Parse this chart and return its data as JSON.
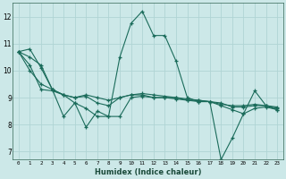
{
  "xlabel": "Humidex (Indice chaleur)",
  "bg_color": "#cce8e8",
  "grid_color": "#b0d4d4",
  "line_color": "#1a6b5a",
  "x_ticks": [
    0,
    1,
    2,
    3,
    4,
    5,
    6,
    7,
    8,
    9,
    10,
    11,
    12,
    13,
    14,
    15,
    16,
    17,
    18,
    19,
    20,
    21,
    22,
    23
  ],
  "y_ticks": [
    7,
    8,
    9,
    10,
    11,
    12
  ],
  "xlim": [
    -0.5,
    23.5
  ],
  "ylim": [
    6.7,
    12.5
  ],
  "series": [
    [
      10.7,
      10.8,
      10.1,
      9.3,
      8.3,
      8.8,
      7.9,
      8.5,
      8.3,
      10.5,
      11.75,
      12.2,
      11.3,
      11.3,
      10.35,
      9.0,
      8.85,
      8.85,
      6.7,
      7.5,
      8.4,
      9.25,
      8.7,
      8.55
    ],
    [
      10.7,
      10.0,
      9.5,
      9.3,
      9.1,
      9.0,
      9.1,
      9.0,
      8.9,
      9.0,
      9.1,
      9.15,
      9.1,
      9.05,
      9.0,
      8.95,
      8.9,
      8.85,
      8.75,
      8.7,
      8.7,
      8.75,
      8.7,
      8.65
    ],
    [
      10.7,
      10.5,
      10.2,
      9.3,
      9.1,
      9.0,
      9.05,
      8.8,
      8.7,
      9.0,
      9.1,
      9.1,
      9.0,
      9.0,
      9.0,
      8.9,
      8.9,
      8.85,
      8.8,
      8.65,
      8.65,
      8.7,
      8.7,
      8.6
    ],
    [
      10.7,
      10.2,
      9.3,
      9.25,
      9.1,
      8.8,
      8.6,
      8.3,
      8.3,
      8.3,
      9.0,
      9.05,
      9.0,
      9.0,
      8.95,
      8.9,
      8.85,
      8.85,
      8.7,
      8.55,
      8.4,
      8.6,
      8.65,
      8.55
    ]
  ]
}
